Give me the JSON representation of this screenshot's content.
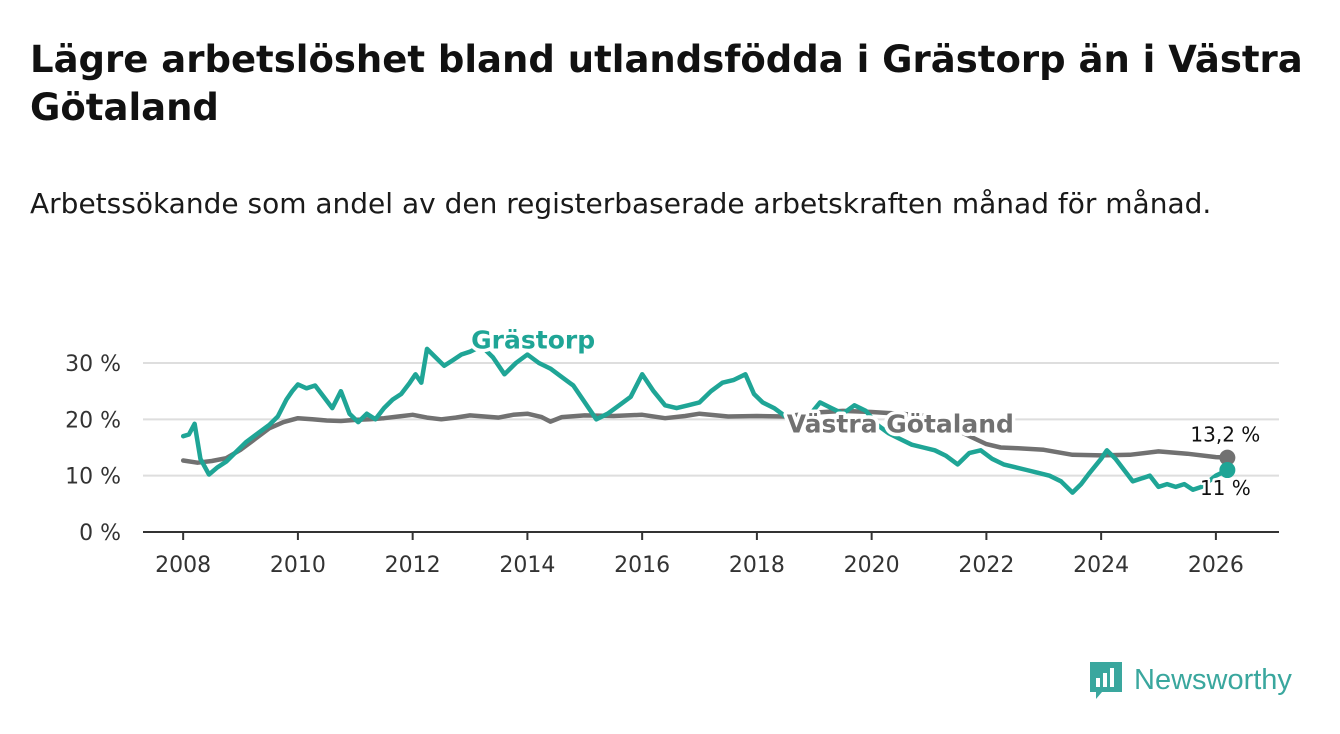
{
  "header": {
    "title": "Lägre arbetslöshet bland utlandsfödda i Grästorp än i Västra Götaland",
    "subtitle": "Arbetssökande som andel av den registerbaserade arbetskraften månad för månad."
  },
  "brand": {
    "name": "Newsworthy",
    "color": "#3aa79e",
    "icon": "bar-chart-logo-icon"
  },
  "chart_data": {
    "type": "line",
    "title": "Lägre arbetslöshet bland utlandsfödda i Grästorp än i Västra Götaland",
    "subtitle": "Arbetssökande som andel av den registerbaserade arbetskraften månad för månad.",
    "xlabel": "",
    "ylabel": "",
    "xlim": [
      2007.3,
      2027.1
    ],
    "ylim": [
      0,
      30
    ],
    "x_ticks": [
      2008,
      2010,
      2012,
      2014,
      2016,
      2018,
      2020,
      2022,
      2024,
      2026
    ],
    "y_ticks": [
      0,
      10,
      20,
      30
    ],
    "y_tick_labels": [
      "0 %",
      "10 %",
      "20 %",
      "30 %"
    ],
    "grid": true,
    "series": [
      {
        "name": "Västra Götaland",
        "color": "#717171",
        "end_label": "13,2 %",
        "x": [
          2008.0,
          2008.25,
          2008.5,
          2008.75,
          2009.0,
          2009.25,
          2009.5,
          2009.75,
          2010.0,
          2010.25,
          2010.5,
          2010.75,
          2011.0,
          2011.25,
          2011.5,
          2011.75,
          2012.0,
          2012.25,
          2012.5,
          2012.75,
          2013.0,
          2013.25,
          2013.5,
          2013.75,
          2014.0,
          2014.25,
          2014.4,
          2014.6,
          2015.0,
          2015.5,
          2016.0,
          2016.4,
          2016.75,
          2017.0,
          2017.5,
          2018.0,
          2018.5,
          2019.0,
          2019.5,
          2020.0,
          2020.5,
          2021.0,
          2021.5,
          2022.0,
          2022.25,
          2022.5,
          2023.0,
          2023.5,
          2024.0,
          2024.5,
          2025.0,
          2025.5,
          2026.0,
          2026.2
        ],
        "values": [
          12.7,
          12.3,
          12.6,
          13.1,
          14.6,
          16.5,
          18.4,
          19.5,
          20.2,
          20.0,
          19.8,
          19.7,
          19.9,
          20.0,
          20.2,
          20.5,
          20.8,
          20.3,
          20.0,
          20.3,
          20.7,
          20.5,
          20.3,
          20.8,
          21.0,
          20.4,
          19.6,
          20.4,
          20.7,
          20.6,
          20.8,
          20.2,
          20.6,
          21.0,
          20.5,
          20.6,
          20.5,
          21.2,
          21.5,
          21.3,
          21.0,
          20.6,
          18.0,
          15.6,
          15.0,
          14.9,
          14.6,
          13.7,
          13.6,
          13.7,
          14.3,
          13.9,
          13.3,
          13.2
        ]
      },
      {
        "name": "Grästorp",
        "color": "#1fa596",
        "end_label": "11 %",
        "x": [
          2008.0,
          2008.1,
          2008.2,
          2008.3,
          2008.45,
          2008.6,
          2008.75,
          2008.9,
          2009.1,
          2009.3,
          2009.5,
          2009.65,
          2009.8,
          2009.9,
          2010.0,
          2010.15,
          2010.3,
          2010.45,
          2010.6,
          2010.75,
          2010.9,
          2011.05,
          2011.2,
          2011.35,
          2011.5,
          2011.65,
          2011.8,
          2011.95,
          2012.05,
          2012.15,
          2012.25,
          2012.4,
          2012.55,
          2012.7,
          2012.85,
          2013.0,
          2013.2,
          2013.4,
          2013.6,
          2013.8,
          2014.0,
          2014.2,
          2014.4,
          2014.6,
          2014.8,
          2015.0,
          2015.2,
          2015.4,
          2015.6,
          2015.8,
          2016.0,
          2016.2,
          2016.4,
          2016.6,
          2016.8,
          2017.0,
          2017.2,
          2017.4,
          2017.6,
          2017.8,
          2017.95,
          2018.1,
          2018.3,
          2018.5,
          2018.7,
          2018.9,
          2019.1,
          2019.3,
          2019.5,
          2019.7,
          2019.9,
          2020.1,
          2020.3,
          2020.5,
          2020.7,
          2020.9,
          2021.1,
          2021.3,
          2021.5,
          2021.7,
          2021.9,
          2022.1,
          2022.3,
          2022.5,
          2022.7,
          2022.9,
          2023.1,
          2023.3,
          2023.5,
          2023.65,
          2023.8,
          2024.0,
          2024.1,
          2024.25,
          2024.4,
          2024.55,
          2024.7,
          2024.85,
          2025.0,
          2025.15,
          2025.3,
          2025.45,
          2025.6,
          2025.75,
          2026.0,
          2026.2
        ],
        "values": [
          17.0,
          17.3,
          19.2,
          13.0,
          10.2,
          11.5,
          12.5,
          14.0,
          16.0,
          17.5,
          19.0,
          20.5,
          23.5,
          25.0,
          26.2,
          25.5,
          26.0,
          24.0,
          22.0,
          25.0,
          21.0,
          19.5,
          21.0,
          20.0,
          22.0,
          23.5,
          24.5,
          26.5,
          28.0,
          26.5,
          32.5,
          31.0,
          29.5,
          30.5,
          31.5,
          32.0,
          33.0,
          31.0,
          28.0,
          30.0,
          31.5,
          30.0,
          29.0,
          27.5,
          26.0,
          23.0,
          20.0,
          21.0,
          22.5,
          24.0,
          28.0,
          25.0,
          22.5,
          22.0,
          22.5,
          23.0,
          25.0,
          26.5,
          27.0,
          28.0,
          24.5,
          23.0,
          22.0,
          20.5,
          19.5,
          20.5,
          23.0,
          22.0,
          21.0,
          22.5,
          21.5,
          19.0,
          17.5,
          16.5,
          15.5,
          15.0,
          14.5,
          13.5,
          12.0,
          14.0,
          14.5,
          13.0,
          12.0,
          11.5,
          11.0,
          10.5,
          10.0,
          9.0,
          7.0,
          8.5,
          10.5,
          13.0,
          14.5,
          13.0,
          11.0,
          9.0,
          9.5,
          10.0,
          8.0,
          8.5,
          8.0,
          8.5,
          7.5,
          8.0,
          10.0,
          11.0
        ]
      }
    ],
    "annotations": [
      {
        "text": "Grästorp",
        "series": "Grästorp",
        "x": 2014.1,
        "y": 32.6
      },
      {
        "text": "Västra Götaland",
        "series": "Västra Götaland",
        "x": 2020.5,
        "y": 17.7
      }
    ]
  }
}
